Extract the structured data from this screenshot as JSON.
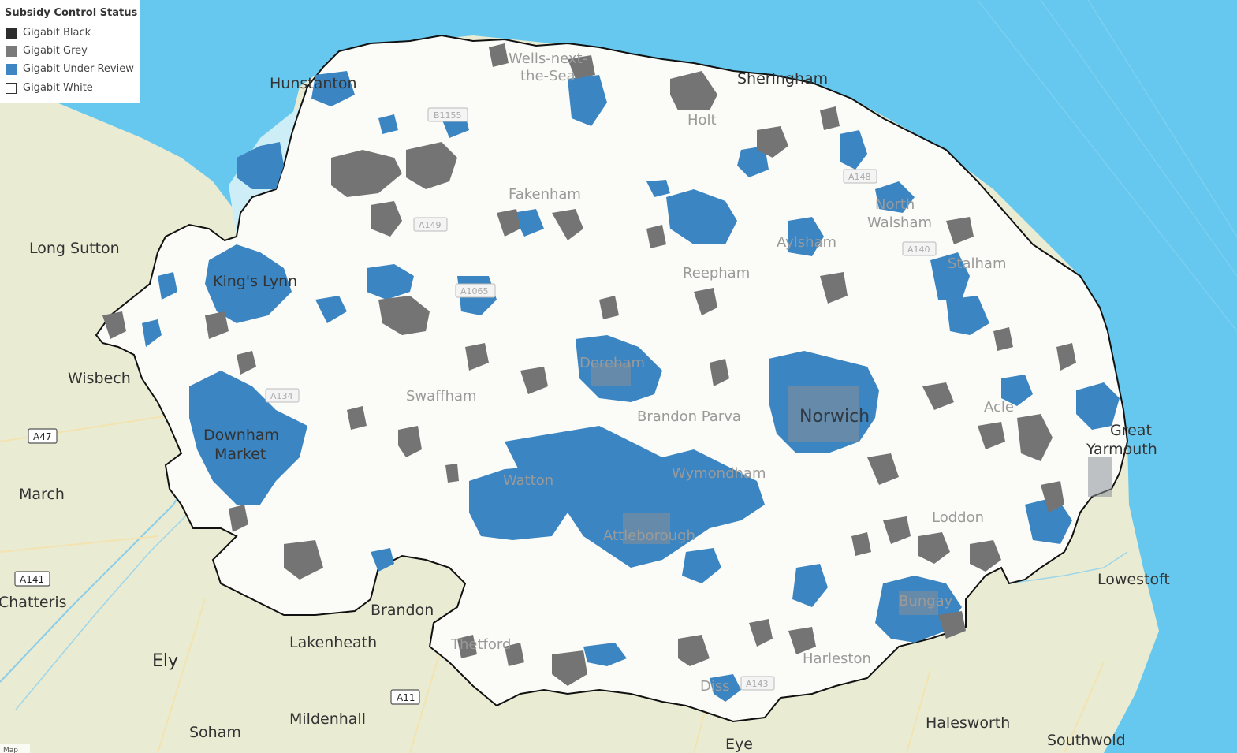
{
  "legend": {
    "title": "Subsidy Control Status",
    "items": [
      {
        "label": "Gigabit Black",
        "color": "#2d2d2d"
      },
      {
        "label": "Gigabit Grey",
        "color": "#7a7a7a"
      },
      {
        "label": "Gigabit Under Review",
        "color": "#3d86c3"
      },
      {
        "label": "Gigabit White",
        "color": "#ffffff"
      }
    ]
  },
  "colors": {
    "sea": "#66c8ee",
    "land": "#e9ebd3",
    "region": "#fbfcf8",
    "grey_area": "#747474",
    "review_area": "#3b85c2",
    "boundary": "#111111"
  },
  "places": {
    "hunstanton": "Hunstanton",
    "wells": "Wells-next-",
    "wells2": "the-Sea",
    "sheringham": "Sheringham",
    "holt": "Holt",
    "fakenham": "Fakenham",
    "long_sutton": "Long Sutton",
    "kings_lynn": "King's Lynn",
    "north_walsham": "North",
    "north_walsham2": "Walsham",
    "aylsham": "Aylsham",
    "reepham": "Reepham",
    "stalham": "Stalham",
    "wisbech": "Wisbech",
    "dereham": "Dereham",
    "swaffham": "Swaffham",
    "brandon_parva": "Brandon Parva",
    "norwich": "Norwich",
    "acle": "Acle",
    "great_yarmouth": "Great",
    "great_yarmouth2": "Yarmouth",
    "downham": "Downham",
    "downham2": "Market",
    "march": "March",
    "watton": "Watton",
    "wymondham": "Wymondham",
    "loddon": "Loddon",
    "attleborough": "Attleborough",
    "lowestoft": "Lowestoft",
    "chatteris": "Chatteris",
    "brandon": "Brandon",
    "bungay": "Bungay",
    "lakenheath": "Lakenheath",
    "thetford": "Thetford",
    "harleston": "Harleston",
    "ely": "Ely",
    "diss": "Diss",
    "mildenhall": "Mildenhall",
    "halesworth": "Halesworth",
    "soham": "Soham",
    "eye": "Eye",
    "southwold": "Southwold"
  },
  "roads": {
    "b1155": "B1155",
    "a148": "A148",
    "a149": "A149",
    "a1065": "A1065",
    "a140": "A140",
    "a47": "A47",
    "a141": "A141",
    "a11": "A11",
    "a134": "A134",
    "a143": "A143"
  },
  "attribution": "Map"
}
